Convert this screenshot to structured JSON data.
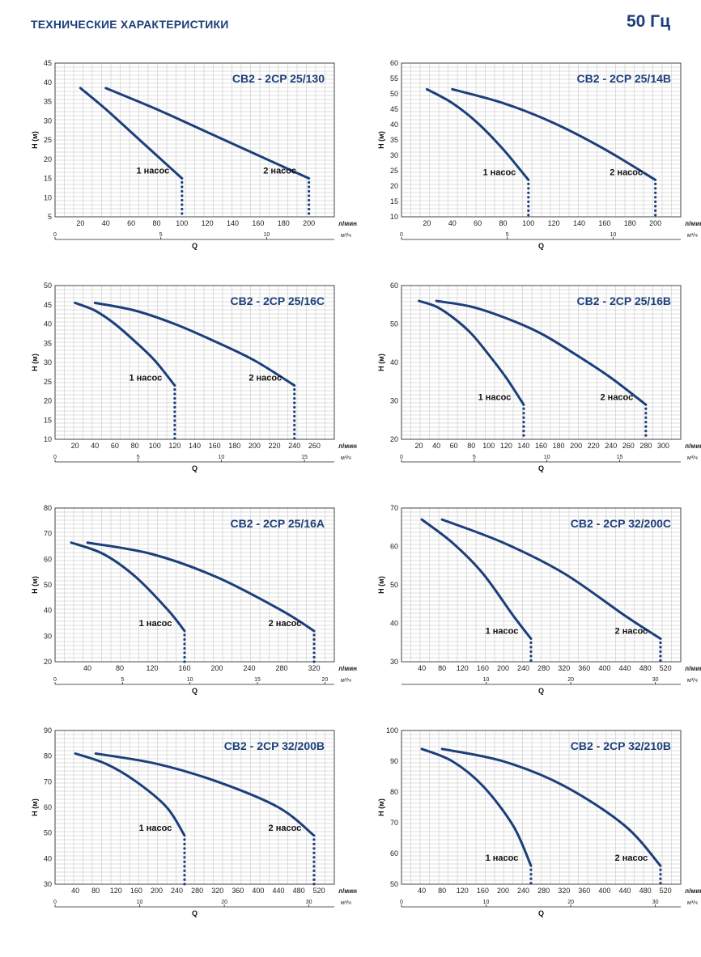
{
  "header": {
    "title": "ТЕХНИЧЕСКИЕ ХАРАКТЕРИСТИКИ",
    "frequency": "50 Гц"
  },
  "common": {
    "ylabel": "H (м)",
    "xlabel": "Q",
    "x_unit_lpm": "л/мин",
    "x_unit_m3h": "м³/ч",
    "colors": {
      "curve": "#1c3f7a",
      "grid": "#bfbfbf",
      "title": "#1c3f7a"
    }
  },
  "chart_data": [
    {
      "type": "line",
      "title": "CB2 - 2CP 25/130",
      "x_ticks": [
        20,
        40,
        60,
        80,
        100,
        120,
        140,
        160,
        180,
        200
      ],
      "x_range": [
        0,
        220
      ],
      "y_ticks": [
        5,
        10,
        15,
        20,
        25,
        30,
        35,
        40,
        45
      ],
      "ylim": [
        5,
        45
      ],
      "m3h_ticks": [
        0,
        5,
        10
      ],
      "series": [
        {
          "name": "1 насос",
          "x": [
            20,
            40,
            60,
            80,
            100
          ],
          "y": [
            38.5,
            33,
            27,
            21,
            15
          ]
        },
        {
          "name": "2  насос",
          "x": [
            40,
            80,
            120,
            160,
            200
          ],
          "y": [
            38.5,
            33,
            27,
            21,
            15
          ]
        }
      ],
      "grid": true
    },
    {
      "type": "line",
      "title": "CB2 - 2CP 25/14B",
      "x_ticks": [
        20,
        40,
        60,
        80,
        100,
        120,
        140,
        160,
        180,
        200
      ],
      "x_range": [
        0,
        220
      ],
      "y_ticks": [
        10,
        15,
        20,
        25,
        30,
        35,
        40,
        45,
        50,
        55,
        60
      ],
      "ylim": [
        10,
        60
      ],
      "m3h_ticks": [
        0,
        5,
        10
      ],
      "series": [
        {
          "name": "1 насос",
          "x": [
            20,
            40,
            60,
            80,
            100
          ],
          "y": [
            51.5,
            47,
            40.5,
            32,
            22
          ]
        },
        {
          "name": "2 насос",
          "x": [
            40,
            80,
            120,
            160,
            200
          ],
          "y": [
            51.5,
            47,
            40.5,
            32,
            22
          ]
        }
      ],
      "grid": true
    },
    {
      "type": "line",
      "title": "CB2 - 2CP 25/16C",
      "x_ticks": [
        20,
        40,
        60,
        80,
        100,
        120,
        140,
        160,
        180,
        200,
        220,
        240,
        260
      ],
      "x_range": [
        0,
        280
      ],
      "y_ticks": [
        10,
        15,
        20,
        25,
        30,
        35,
        40,
        45,
        50
      ],
      "ylim": [
        10,
        50
      ],
      "m3h_ticks": [
        0,
        5,
        10,
        15
      ],
      "series": [
        {
          "name": "1 насос",
          "x": [
            20,
            40,
            60,
            80,
            100,
            120
          ],
          "y": [
            45.5,
            43.5,
            40,
            35.5,
            30.5,
            24
          ]
        },
        {
          "name": "2 насос",
          "x": [
            40,
            80,
            120,
            160,
            200,
            240
          ],
          "y": [
            45.5,
            43.5,
            40,
            35.5,
            30.5,
            24
          ]
        }
      ],
      "grid": true
    },
    {
      "type": "line",
      "title": "CB2 - 2CP 25/16B",
      "x_ticks": [
        20,
        40,
        60,
        80,
        100,
        120,
        140,
        160,
        180,
        200,
        220,
        240,
        260,
        280,
        300
      ],
      "x_range": [
        0,
        320
      ],
      "y_ticks": [
        20,
        30,
        40,
        50,
        60
      ],
      "ylim": [
        20,
        60
      ],
      "m3h_ticks": [
        0,
        5,
        10,
        15
      ],
      "series": [
        {
          "name": "1 насос",
          "x": [
            20,
            40,
            60,
            80,
            100,
            120,
            140
          ],
          "y": [
            56,
            54.5,
            51.5,
            47.5,
            42,
            36,
            29
          ]
        },
        {
          "name": "2 насос",
          "x": [
            40,
            80,
            120,
            160,
            200,
            240,
            280
          ],
          "y": [
            56,
            54.5,
            51.5,
            47.5,
            42,
            36,
            29
          ]
        }
      ],
      "grid": true
    },
    {
      "type": "line",
      "title": "CB2 - 2CP 25/16A",
      "x_ticks": [
        40,
        80,
        120,
        160,
        200,
        240,
        280,
        320
      ],
      "x_range": [
        0,
        345
      ],
      "y_ticks": [
        20,
        30,
        40,
        50,
        60,
        70,
        80
      ],
      "ylim": [
        20,
        80
      ],
      "m3h_ticks": [
        0,
        5,
        10,
        15,
        20
      ],
      "series": [
        {
          "name": "1 насос",
          "x": [
            20,
            60,
            100,
            140,
            160
          ],
          "y": [
            66.5,
            62,
            53,
            40,
            32
          ]
        },
        {
          "name": "2 насос",
          "x": [
            40,
            120,
            200,
            280,
            320
          ],
          "y": [
            66.5,
            62,
            53,
            40,
            32
          ]
        }
      ],
      "grid": true
    },
    {
      "type": "line",
      "title": "CB2 - 2CP 32/200C",
      "x_ticks": [
        40,
        80,
        120,
        160,
        200,
        240,
        280,
        320,
        360,
        400,
        440,
        480,
        520
      ],
      "x_range": [
        0,
        550
      ],
      "y_ticks": [
        30,
        40,
        50,
        60,
        70
      ],
      "ylim": [
        30,
        70
      ],
      "m3h_ticks": [
        10,
        20,
        30
      ],
      "series": [
        {
          "name": "1 насос",
          "x": [
            40,
            100,
            160,
            220,
            255
          ],
          "y": [
            67,
            61,
            53,
            42,
            36
          ]
        },
        {
          "name": "2 насос",
          "x": [
            80,
            200,
            320,
            440,
            510
          ],
          "y": [
            67,
            61,
            53,
            42,
            36
          ]
        }
      ],
      "grid": true
    },
    {
      "type": "line",
      "title": "CB2 - 2CP 32/200B",
      "x_ticks": [
        40,
        80,
        120,
        160,
        200,
        240,
        280,
        320,
        360,
        400,
        440,
        480,
        520
      ],
      "x_range": [
        0,
        550
      ],
      "y_ticks": [
        30,
        40,
        50,
        60,
        70,
        80,
        90
      ],
      "ylim": [
        30,
        90
      ],
      "m3h_ticks": [
        0,
        10,
        20,
        30
      ],
      "series": [
        {
          "name": "1 насос",
          "x": [
            40,
            100,
            160,
            220,
            255
          ],
          "y": [
            81,
            77,
            70,
            60,
            49
          ]
        },
        {
          "name": "2 насос",
          "x": [
            80,
            200,
            320,
            440,
            510
          ],
          "y": [
            81,
            77,
            70,
            60,
            49
          ]
        }
      ],
      "grid": true
    },
    {
      "type": "line",
      "title": "CB2 - 2CP 32/210B",
      "x_ticks": [
        40,
        80,
        120,
        160,
        200,
        240,
        280,
        320,
        360,
        400,
        440,
        480,
        520
      ],
      "x_range": [
        0,
        550
      ],
      "y_ticks": [
        50,
        60,
        70,
        80,
        90,
        100
      ],
      "ylim": [
        50,
        100
      ],
      "m3h_ticks": [
        0,
        10,
        20,
        30
      ],
      "series": [
        {
          "name": "1  насос",
          "x": [
            40,
            100,
            160,
            220,
            255
          ],
          "y": [
            94,
            90,
            82,
            69,
            56
          ]
        },
        {
          "name": "2 насос",
          "x": [
            80,
            200,
            320,
            440,
            510
          ],
          "y": [
            94,
            90,
            82,
            69,
            56
          ]
        }
      ],
      "grid": true
    }
  ]
}
